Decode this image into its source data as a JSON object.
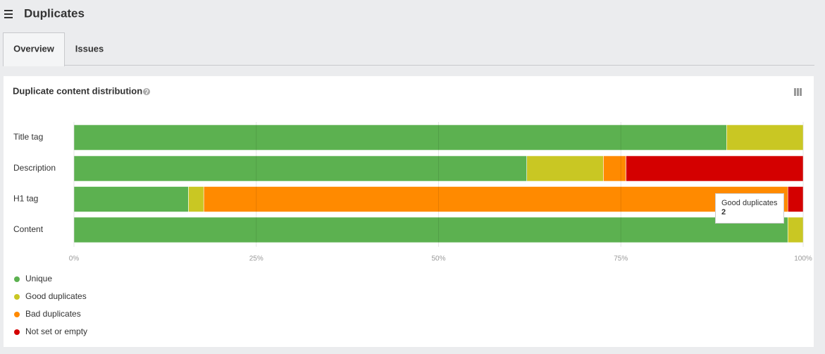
{
  "header": {
    "title": "Duplicates"
  },
  "tabs": [
    "Overview",
    "Issues"
  ],
  "chart_data": {
    "type": "stacked-bar-horizontal",
    "title": "Duplicate content distribution",
    "categories": [
      "Title tag",
      "Description",
      "H1 tag",
      "Content"
    ],
    "series": [
      {
        "name": "Unique",
        "color": "#5cb150",
        "values": [
          89.5,
          62.1,
          15.7,
          97.9
        ]
      },
      {
        "name": "Good duplicates",
        "color": "#c9c723",
        "values": [
          10.5,
          10.5,
          2.1,
          2.1
        ]
      },
      {
        "name": "Bad duplicates",
        "color": "#ff8a00",
        "values": [
          0,
          3.1,
          80.1,
          0
        ]
      },
      {
        "name": "Not set or empty",
        "color": "#d40000",
        "values": [
          0,
          24.3,
          2.1,
          0
        ]
      }
    ],
    "xlim": [
      0,
      100
    ],
    "xticks": [
      {
        "value": 0,
        "label": "0%"
      },
      {
        "value": 25,
        "label": "25%"
      },
      {
        "value": 50,
        "label": "50%"
      },
      {
        "value": 75,
        "label": "75%"
      },
      {
        "value": 100,
        "label": "100%"
      }
    ],
    "grid": true,
    "tooltip": {
      "title": "Good duplicates",
      "value": 2
    }
  }
}
